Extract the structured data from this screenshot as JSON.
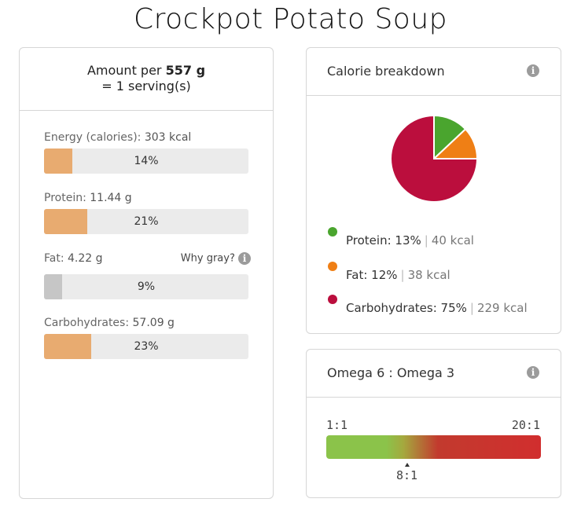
{
  "page": {
    "title": "Crockpot Potato Soup"
  },
  "amount": {
    "prefix": "Amount per ",
    "grams": "557 g",
    "servings": "= 1 serving(s)"
  },
  "nutrients": [
    {
      "name": "Energy (calories):",
      "value": "303 kcal",
      "percent_text": "14%",
      "percent": 14,
      "gray": false
    },
    {
      "name": "Protein:",
      "value": "11.44 g",
      "percent_text": "21%",
      "percent": 21,
      "gray": false
    },
    {
      "name": "Fat:",
      "value": "4.22 g",
      "percent_text": "9%",
      "percent": 9,
      "gray": true
    },
    {
      "name": "Carbohydrates:",
      "value": "57.09 g",
      "percent_text": "23%",
      "percent": 23,
      "gray": false
    }
  ],
  "why_gray": "Why gray?",
  "info_icon": "i",
  "calorie_breakdown": {
    "title": "Calorie breakdown",
    "items": [
      {
        "label": "Protein: 13%",
        "kcal": "40 kcal",
        "percent": 13,
        "color": "#4aa52e"
      },
      {
        "label": "Fat: 12%",
        "kcal": "38 kcal",
        "percent": 12,
        "color": "#ef7f15"
      },
      {
        "label": "Carbohydrates: 75%",
        "kcal": "229 kcal",
        "percent": 75,
        "color": "#bb0e3d"
      }
    ]
  },
  "omega": {
    "title": "Omega 6 : Omega 3",
    "min_label": "1:1",
    "max_label": "20:1",
    "value_label": "8:1"
  },
  "colors": {
    "bar_fill": "#e8ab70",
    "bar_fill_gray": "#c6c6c6",
    "bar_bg": "#ebebeb"
  }
}
